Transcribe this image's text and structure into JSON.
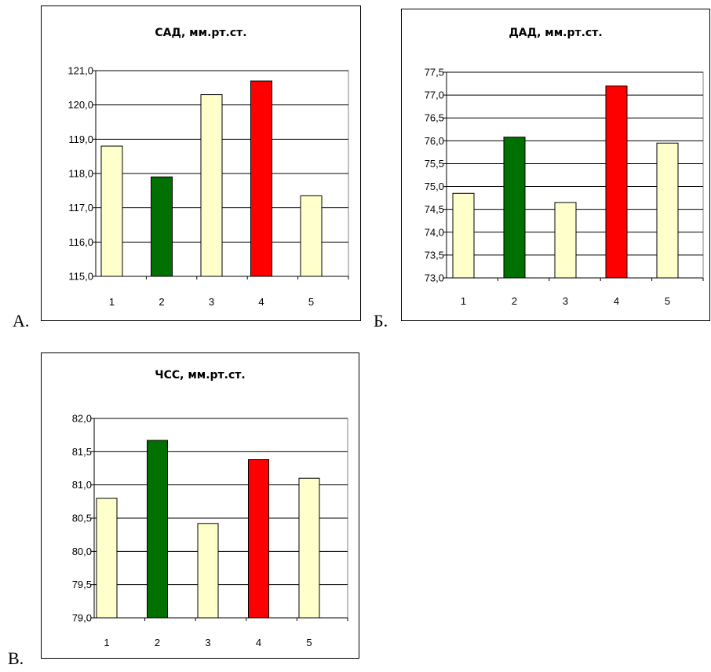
{
  "colors": {
    "default_bar": "#FFFFCC",
    "min_bar": "#007000",
    "max_bar": "#FF0000",
    "gridline": "#000000",
    "plot_bg": "#FFFFFF"
  },
  "panels": [
    {
      "letter": "А."
    },
    {
      "letter": "Б."
    },
    {
      "letter": "В."
    }
  ],
  "chart_data": [
    {
      "type": "bar",
      "title": "САД, мм.рт.ст.",
      "categories": [
        "1",
        "2",
        "3",
        "4",
        "5"
      ],
      "values": [
        118.8,
        117.9,
        120.3,
        120.7,
        117.35
      ],
      "bar_colors": [
        "default_bar",
        "min_bar",
        "default_bar",
        "max_bar",
        "default_bar"
      ],
      "ylim": [
        115.0,
        121.0
      ],
      "yticks": [
        "115,0",
        "116,0",
        "117,0",
        "118,0",
        "119,0",
        "120,0",
        "121,0"
      ],
      "grid": true,
      "legend": false
    },
    {
      "type": "bar",
      "title": "ДАД, мм.рт.ст.",
      "categories": [
        "1",
        "2",
        "3",
        "4",
        "5"
      ],
      "values": [
        74.85,
        76.08,
        74.65,
        77.2,
        75.95
      ],
      "bar_colors": [
        "default_bar",
        "min_bar",
        "default_bar",
        "max_bar",
        "default_bar"
      ],
      "ylim": [
        73.0,
        77.5
      ],
      "yticks": [
        "73,0",
        "73,5",
        "74,0",
        "74,5",
        "75,0",
        "75,5",
        "76,0",
        "76,5",
        "77,0",
        "77,5"
      ],
      "grid": true,
      "legend": false
    },
    {
      "type": "bar",
      "title": "ЧСС, мм.рт.ст.",
      "categories": [
        "1",
        "2",
        "3",
        "4",
        "5"
      ],
      "values": [
        80.8,
        81.67,
        80.42,
        81.38,
        81.1
      ],
      "bar_colors": [
        "default_bar",
        "min_bar",
        "default_bar",
        "max_bar",
        "default_bar"
      ],
      "ylim": [
        79.0,
        82.0
      ],
      "yticks": [
        "79,0",
        "79,5",
        "80,0",
        "80,5",
        "81,0",
        "81,5",
        "82,0"
      ],
      "grid": true,
      "legend": false
    }
  ]
}
